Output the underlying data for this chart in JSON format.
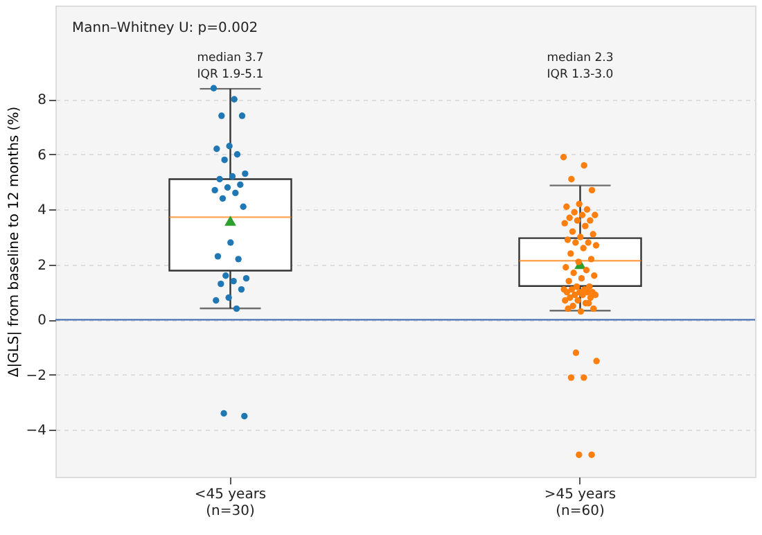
{
  "chart_data": {
    "type": "box",
    "categories": [
      "<45 years\n(n=30)",
      ">45 years\n(n=60)"
    ],
    "ylabel": "Δ|GLS| from baseline to 12 months (%)",
    "ylim": [
      -5.7,
      11.4
    ],
    "yticks": [
      -4,
      -2,
      0,
      2,
      4,
      6,
      8
    ],
    "grid": "y",
    "boxes": [
      {
        "low": 0.41,
        "q1": 1.78,
        "median": 3.72,
        "q3": 5.1,
        "high": 8.38,
        "mean": 3.59
      },
      {
        "low": 0.33,
        "q1": 1.22,
        "median": 2.14,
        "q3": 2.96,
        "high": 4.87,
        "mean": 2.02
      }
    ],
    "series": [
      {
        "type": "scatter",
        "color": "#1f77b4",
        "x": [
          "<45 years\n(n=30)",
          "<45 years\n(n=30)",
          "<45 years\n(n=30)",
          "<45 years\n(n=30)",
          "<45 years\n(n=30)",
          "<45 years\n(n=30)",
          "<45 years\n(n=30)",
          "<45 years\n(n=30)",
          "<45 years\n(n=30)",
          "<45 years\n(n=30)",
          "<45 years\n(n=30)",
          "<45 years\n(n=30)",
          "<45 years\n(n=30)",
          "<45 years\n(n=30)",
          "<45 years\n(n=30)",
          "<45 years\n(n=30)",
          "<45 years\n(n=30)",
          "<45 years\n(n=30)",
          "<45 years\n(n=30)",
          "<45 years\n(n=30)",
          "<45 years\n(n=30)",
          "<45 years\n(n=30)",
          "<45 years\n(n=30)",
          "<45 years\n(n=30)",
          "<45 years\n(n=30)",
          "<45 years\n(n=30)",
          "<45 years\n(n=30)",
          "<45 years\n(n=30)",
          "<45 years\n(n=30)",
          "<45 years\n(n=30)"
        ],
        "values": [
          8.4,
          8.0,
          7.4,
          7.4,
          6.3,
          6.2,
          6.0,
          5.8,
          5.3,
          5.2,
          5.1,
          4.9,
          4.8,
          4.7,
          4.6,
          4.4,
          4.1,
          2.8,
          2.3,
          2.2,
          1.6,
          1.5,
          1.4,
          1.3,
          1.1,
          0.8,
          0.7,
          0.4,
          -3.4,
          -3.5
        ]
      },
      {
        "type": "scatter",
        "color": "#ff7f0e",
        "x": [
          ">45 years\n(n=60)",
          ">45 years\n(n=60)",
          ">45 years\n(n=60)",
          ">45 years\n(n=60)",
          ">45 years\n(n=60)",
          ">45 years\n(n=60)",
          ">45 years\n(n=60)",
          ">45 years\n(n=60)",
          ">45 years\n(n=60)",
          ">45 years\n(n=60)",
          ">45 years\n(n=60)",
          ">45 years\n(n=60)",
          ">45 years\n(n=60)",
          ">45 years\n(n=60)",
          ">45 years\n(n=60)",
          ">45 years\n(n=60)",
          ">45 years\n(n=60)",
          ">45 years\n(n=60)",
          ">45 years\n(n=60)",
          ">45 years\n(n=60)",
          ">45 years\n(n=60)",
          ">45 years\n(n=60)",
          ">45 years\n(n=60)",
          ">45 years\n(n=60)",
          ">45 years\n(n=60)",
          ">45 years\n(n=60)",
          ">45 years\n(n=60)",
          ">45 years\n(n=60)",
          ">45 years\n(n=60)",
          ">45 years\n(n=60)",
          ">45 years\n(n=60)",
          ">45 years\n(n=60)",
          ">45 years\n(n=60)",
          ">45 years\n(n=60)",
          ">45 years\n(n=60)",
          ">45 years\n(n=60)",
          ">45 years\n(n=60)",
          ">45 years\n(n=60)",
          ">45 years\n(n=60)",
          ">45 years\n(n=60)",
          ">45 years\n(n=60)",
          ">45 years\n(n=60)",
          ">45 years\n(n=60)",
          ">45 years\n(n=60)",
          ">45 years\n(n=60)",
          ">45 years\n(n=60)",
          ">45 years\n(n=60)",
          ">45 years\n(n=60)",
          ">45 years\n(n=60)",
          ">45 years\n(n=60)",
          ">45 years\n(n=60)",
          ">45 years\n(n=60)",
          ">45 years\n(n=60)",
          ">45 years\n(n=60)",
          ">45 years\n(n=60)",
          ">45 years\n(n=60)",
          ">45 years\n(n=60)",
          ">45 years\n(n=60)",
          ">45 years\n(n=60)",
          ">45 years\n(n=60)"
        ],
        "values": [
          5.9,
          5.6,
          5.1,
          4.7,
          4.2,
          4.1,
          4.0,
          3.9,
          3.8,
          3.8,
          3.7,
          3.6,
          3.6,
          3.5,
          3.4,
          3.2,
          3.1,
          3.0,
          2.9,
          2.8,
          2.8,
          2.7,
          2.6,
          2.4,
          2.2,
          2.1,
          1.9,
          1.8,
          1.7,
          1.6,
          1.5,
          1.4,
          1.2,
          1.2,
          1.1,
          1.1,
          1.1,
          1.0,
          1.0,
          1.0,
          1.0,
          0.9,
          0.9,
          0.9,
          0.8,
          0.8,
          0.7,
          0.7,
          0.6,
          0.5,
          0.4,
          0.3,
          0.4,
          0.6,
          -1.2,
          -1.5,
          -2.1,
          -2.1,
          -4.9,
          -4.9
        ]
      }
    ],
    "ref_lines": [
      {
        "axis": "y",
        "value": 0,
        "color": "#4c72b0"
      }
    ],
    "annotations": [
      "Mann–Whitney U: p=0.002",
      "median 3.7\nIQR 1.9-5.1",
      "median 2.3\nIQR 1.3-3.0"
    ],
    "legend": false
  }
}
